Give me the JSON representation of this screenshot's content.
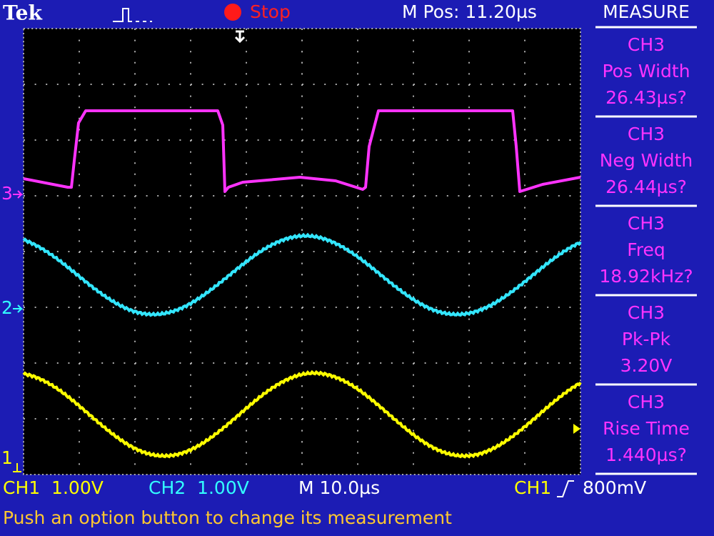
{
  "header": {
    "brand": "Tek",
    "status": "Stop",
    "position": "M Pos: 11.20µs",
    "menu_title": "MEASURE"
  },
  "measurements": [
    {
      "source": "CH3",
      "name": "Pos Width",
      "value": "26.43µs?"
    },
    {
      "source": "CH3",
      "name": "Neg Width",
      "value": "26.44µs?"
    },
    {
      "source": "CH3",
      "name": "Freq",
      "value": "18.92kHz?"
    },
    {
      "source": "CH3",
      "name": "Pk-Pk",
      "value": "3.20V"
    },
    {
      "source": "CH3",
      "name": "Rise Time",
      "value": "1.440µs?"
    }
  ],
  "channel_markers": [
    "3",
    "2",
    "1"
  ],
  "footer": {
    "ch1": "CH1  1.00V",
    "ch2": "CH2  1.00V",
    "timebase": "M 10.0µs",
    "trigger_source": "CH1",
    "trigger_level": "800mV"
  },
  "message": "Push an option button to change its measurement"
}
